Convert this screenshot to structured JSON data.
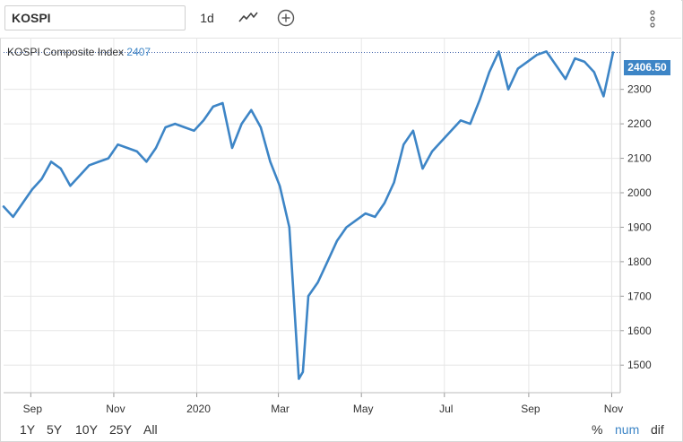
{
  "toolbar": {
    "symbol": "KOSPI",
    "interval": "1d"
  },
  "legend": {
    "name": "KOSPI Composite Index",
    "value": "2407"
  },
  "price_tag": "2406.50",
  "ranges": [
    "1Y",
    "5Y",
    "10Y",
    "25Y",
    "All"
  ],
  "modes": [
    "%",
    "num",
    "dif"
  ],
  "active_mode": "num",
  "colors": {
    "line": "#3d85c6",
    "grid": "#e6e6e6",
    "price_tag": "#3d85c6",
    "active_mode": "#3d85c6"
  },
  "chart_data": {
    "type": "line",
    "title": "",
    "xlabel": "",
    "ylabel": "",
    "ylim": [
      1420,
      2450
    ],
    "y_ticks": [
      1500,
      1600,
      1700,
      1800,
      1900,
      2000,
      2100,
      2200,
      2300
    ],
    "x_tick_labels": [
      "Sep",
      "Nov",
      "2020",
      "Mar",
      "May",
      "Jul",
      "Sep",
      "Nov"
    ],
    "grid": true,
    "series": [
      {
        "name": "KOSPI Composite Index",
        "x": [
          "2019-08-12",
          "2019-08-19",
          "2019-08-26",
          "2019-09-02",
          "2019-09-09",
          "2019-09-16",
          "2019-09-23",
          "2019-09-30",
          "2019-10-07",
          "2019-10-14",
          "2019-10-21",
          "2019-10-28",
          "2019-11-04",
          "2019-11-11",
          "2019-11-18",
          "2019-11-25",
          "2019-12-02",
          "2019-12-09",
          "2019-12-16",
          "2019-12-23",
          "2019-12-30",
          "2020-01-06",
          "2020-01-13",
          "2020-01-20",
          "2020-01-27",
          "2020-02-03",
          "2020-02-10",
          "2020-02-17",
          "2020-02-24",
          "2020-03-02",
          "2020-03-09",
          "2020-03-16",
          "2020-03-19",
          "2020-03-23",
          "2020-03-30",
          "2020-04-06",
          "2020-04-13",
          "2020-04-20",
          "2020-04-27",
          "2020-05-04",
          "2020-05-11",
          "2020-05-18",
          "2020-05-25",
          "2020-06-01",
          "2020-06-08",
          "2020-06-15",
          "2020-06-22",
          "2020-06-29",
          "2020-07-06",
          "2020-07-13",
          "2020-07-20",
          "2020-07-27",
          "2020-08-03",
          "2020-08-10",
          "2020-08-17",
          "2020-08-24",
          "2020-08-31",
          "2020-09-07",
          "2020-09-14",
          "2020-09-21",
          "2020-09-28",
          "2020-10-05",
          "2020-10-12",
          "2020-10-19",
          "2020-10-26",
          "2020-11-02"
        ],
        "y": [
          1960,
          1930,
          1970,
          2010,
          2040,
          2090,
          2070,
          2020,
          2050,
          2080,
          2090,
          2100,
          2140,
          2130,
          2120,
          2090,
          2130,
          2190,
          2200,
          2190,
          2180,
          2210,
          2250,
          2260,
          2130,
          2200,
          2240,
          2190,
          2090,
          2020,
          1900,
          1460,
          1480,
          1700,
          1740,
          1800,
          1860,
          1900,
          1920,
          1940,
          1930,
          1970,
          2030,
          2140,
          2180,
          2070,
          2120,
          2150,
          2180,
          2210,
          2200,
          2270,
          2350,
          2410,
          2300,
          2360,
          2380,
          2400,
          2410,
          2370,
          2330,
          2390,
          2380,
          2350,
          2280,
          2407
        ]
      }
    ]
  }
}
